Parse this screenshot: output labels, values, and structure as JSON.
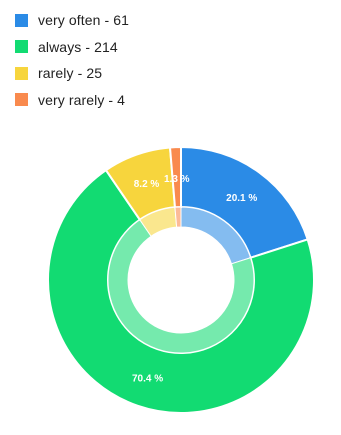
{
  "chart_data": {
    "type": "pie",
    "categories": [
      "very often",
      "always",
      "rarely",
      "very rarely"
    ],
    "values": [
      61,
      214,
      25,
      4
    ],
    "legend_labels": [
      "very often - 61",
      "always - 214",
      "rarely - 25",
      "very rarely - 4"
    ],
    "data_labels": [
      "20.1 %",
      "70.4 %",
      "8.2 %",
      "1.3 %"
    ],
    "colors": [
      "#2B8BE6",
      "#12DB72",
      "#F7D53D",
      "#F98A4E"
    ],
    "title": "",
    "legend_position": "top-left"
  }
}
